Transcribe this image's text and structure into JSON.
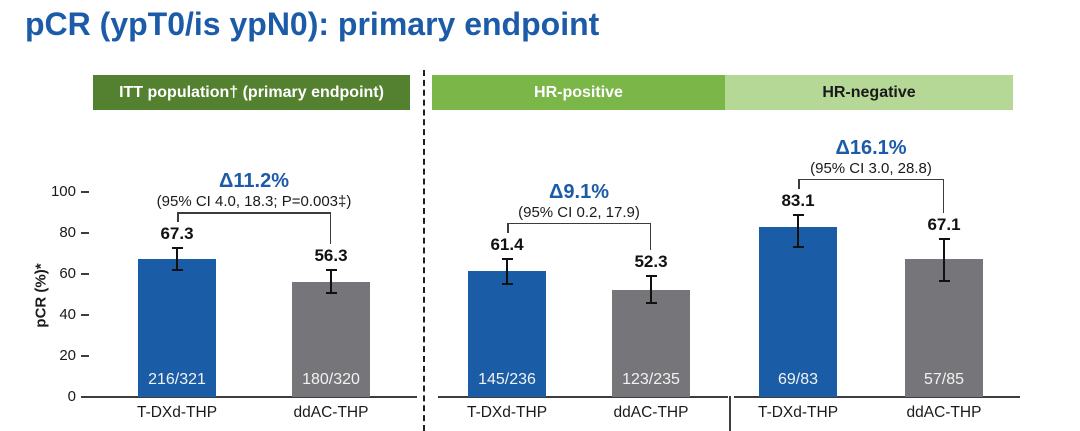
{
  "chart_data": {
    "type": "bar",
    "title": "pCR (ypT0/is ypN0): primary endpoint",
    "ylabel": "pCR (%)*",
    "ylim": [
      0,
      100
    ],
    "yticks": [
      0,
      20,
      40,
      60,
      80,
      100
    ],
    "grid": false,
    "categories": [
      "T-DXd-THP",
      "ddAC-THP"
    ],
    "panels": [
      {
        "key": "itt",
        "name": "ITT population† (primary endpoint)",
        "delta": "Δ11.2%",
        "ci_text": "(95% CI 4.0, 18.3; P=0.003‡)",
        "bars": [
          {
            "arm": "T-DXd-THP",
            "value": 67.3,
            "n": "216/321",
            "err": [
              62.0,
              72.5
            ],
            "color_key": "bar_blue"
          },
          {
            "arm": "ddAC-THP",
            "value": 56.3,
            "n": "180/320",
            "err": [
              50.7,
              62.0
            ],
            "color_key": "bar_gray"
          }
        ]
      },
      {
        "key": "hr_positive",
        "name": "HR-positive",
        "delta": "Δ9.1%",
        "ci_text": "(95% CI 0.2, 17.9)",
        "bars": [
          {
            "arm": "T-DXd-THP",
            "value": 61.4,
            "n": "145/236",
            "err": [
              55.0,
              67.5
            ],
            "color_key": "bar_blue"
          },
          {
            "arm": "ddAC-THP",
            "value": 52.3,
            "n": "123/235",
            "err": [
              46.0,
              59.0
            ],
            "color_key": "bar_gray"
          }
        ]
      },
      {
        "key": "hr_negative",
        "name": "HR-negative",
        "delta": "Δ16.1%",
        "ci_text": "(95% CI 3.0, 28.8)",
        "bars": [
          {
            "arm": "T-DXd-THP",
            "value": 83.1,
            "n": "69/83",
            "err": [
              73.0,
              89.0
            ],
            "color_key": "bar_blue"
          },
          {
            "arm": "ddAC-THP",
            "value": 67.1,
            "n": "57/85",
            "err": [
              56.5,
              77.0
            ],
            "color_key": "bar_gray"
          }
        ]
      }
    ]
  },
  "colors": {
    "accent_blue": "#1c5ba7",
    "bar_blue": "#1a5da6",
    "bar_gray": "#76767a",
    "header_itt": "#53812f",
    "header_hr_positive": "#7ab648",
    "header_hr_negative": "#b5d897",
    "header_itt_text": "#ffffff",
    "header_hr_positive_text": "#ffffff",
    "header_hr_negative_text": "#1a1a1a",
    "axis": "#3d3d3d"
  }
}
